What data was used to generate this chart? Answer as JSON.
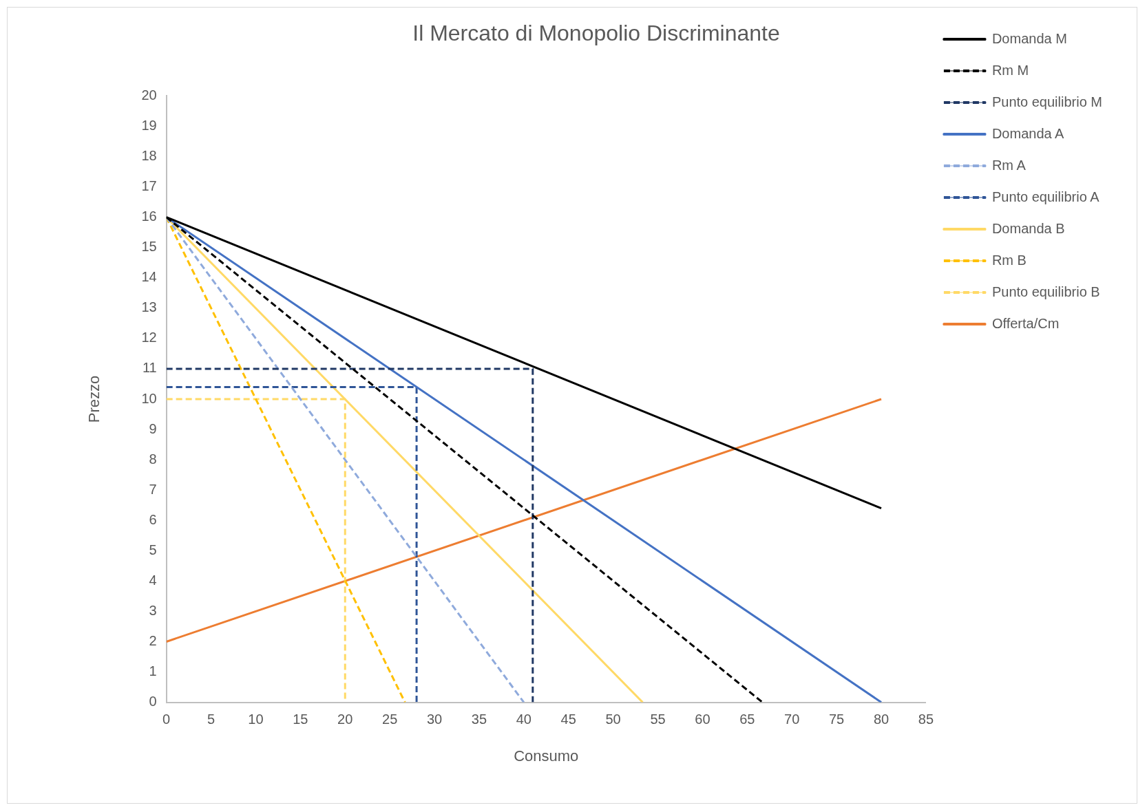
{
  "chart_data": {
    "type": "line",
    "title": "Il Mercato di Monopolio Discriminante",
    "xlabel": "Consumo",
    "ylabel": "Prezzo",
    "xlim": [
      0,
      85
    ],
    "xticks": [
      0,
      5,
      10,
      15,
      20,
      25,
      30,
      35,
      40,
      45,
      50,
      55,
      60,
      65,
      70,
      75,
      80,
      85
    ],
    "ylim": [
      0,
      20
    ],
    "yticks": [
      0,
      1,
      2,
      3,
      4,
      5,
      6,
      7,
      8,
      9,
      10,
      11,
      12,
      13,
      14,
      15,
      16,
      17,
      18,
      19,
      20
    ],
    "grid": false,
    "legend": "top right",
    "marker": "none",
    "series": [
      {
        "name": "Domanda M",
        "color": "#000000",
        "line_style": "solid",
        "x": [
          0,
          80
        ],
        "values": [
          16,
          6.4
        ]
      },
      {
        "name": "Rm M",
        "color": "#000000",
        "line_style": "dashed",
        "x": [
          0,
          66.7
        ],
        "values": [
          16,
          0
        ]
      },
      {
        "name": "Punto equilibrio M",
        "color": "#203864",
        "line_style": "dashed",
        "x": [
          0,
          41,
          41
        ],
        "values": [
          11,
          11,
          0
        ]
      },
      {
        "name": "Domanda A",
        "color": "#4472c4",
        "line_style": "solid",
        "x": [
          0,
          80
        ],
        "values": [
          16,
          0
        ]
      },
      {
        "name": "Rm A",
        "color": "#8faadc",
        "line_style": "dashed",
        "x": [
          0,
          40
        ],
        "values": [
          16,
          0
        ]
      },
      {
        "name": "Punto equilibrio A",
        "color": "#2f5597",
        "line_style": "dashed",
        "x": [
          0,
          28,
          28
        ],
        "values": [
          10.4,
          10.4,
          0
        ]
      },
      {
        "name": "Domanda B",
        "color": "#ffd966",
        "line_style": "solid",
        "x": [
          0,
          53.3
        ],
        "values": [
          16,
          0
        ]
      },
      {
        "name": "Rm B",
        "color": "#ffc000",
        "line_style": "dashed",
        "x": [
          0,
          26.7
        ],
        "values": [
          16,
          0
        ]
      },
      {
        "name": "Punto equilibrio B",
        "color": "#ffd966",
        "line_style": "dashed",
        "x": [
          0,
          20,
          20
        ],
        "values": [
          10,
          10,
          0
        ]
      },
      {
        "name": "Offerta/Cm",
        "color": "#ed7d31",
        "line_style": "solid",
        "x": [
          0,
          80
        ],
        "values": [
          2,
          10
        ]
      }
    ]
  }
}
